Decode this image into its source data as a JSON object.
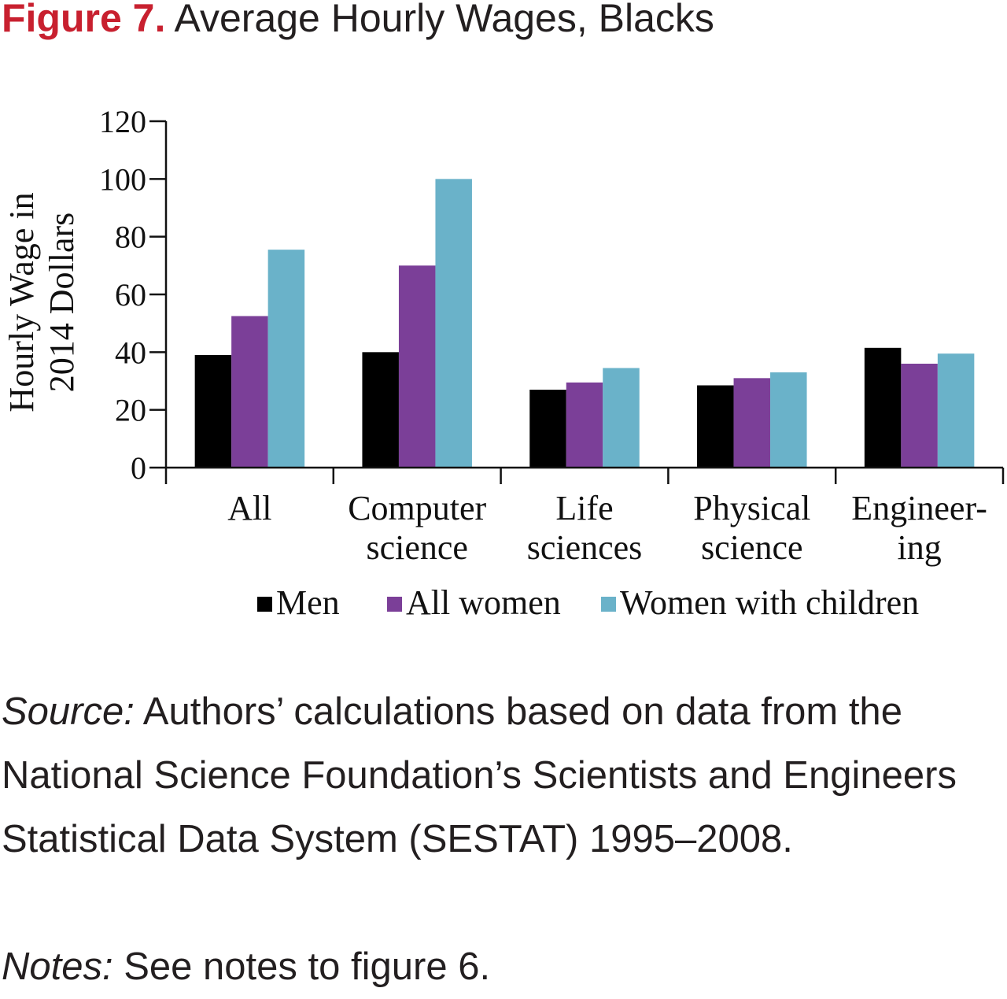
{
  "figure": {
    "label": "Figure 7.",
    "title": "Average Hourly Wages, Blacks"
  },
  "source": {
    "label": "Source:",
    "text": "Authors’ calculations based on data from the National Science Foundation’s Scientists and Engineers Statistical Data System (SESTAT) 1995–2008."
  },
  "notes": {
    "label": "Notes:",
    "text": "See notes to figure 6."
  },
  "chart_data": {
    "type": "bar",
    "title": "Average Hourly Wages, Blacks",
    "ylabel_lines": [
      "Hourly Wage in",
      "2014 Dollars"
    ],
    "xlabel": "",
    "ylim": [
      0,
      120
    ],
    "yticks": [
      0,
      20,
      40,
      60,
      80,
      100,
      120
    ],
    "categories": [
      [
        "All"
      ],
      [
        "Computer",
        "science"
      ],
      [
        "Life",
        "sciences"
      ],
      [
        "Physical",
        "science"
      ],
      [
        "Engineer-",
        "ing"
      ]
    ],
    "series": [
      {
        "name": "Men",
        "color": "#000000",
        "values": [
          39,
          40,
          27,
          28.5,
          41.5
        ]
      },
      {
        "name": "All women",
        "color": "#7b3f98",
        "values": [
          52.5,
          70,
          29.5,
          31,
          36
        ]
      },
      {
        "name": "Women with children",
        "color": "#6ab2c9",
        "values": [
          75.5,
          100,
          34.5,
          33,
          39.5
        ]
      }
    ],
    "grid": false,
    "legend_position": "bottom"
  }
}
